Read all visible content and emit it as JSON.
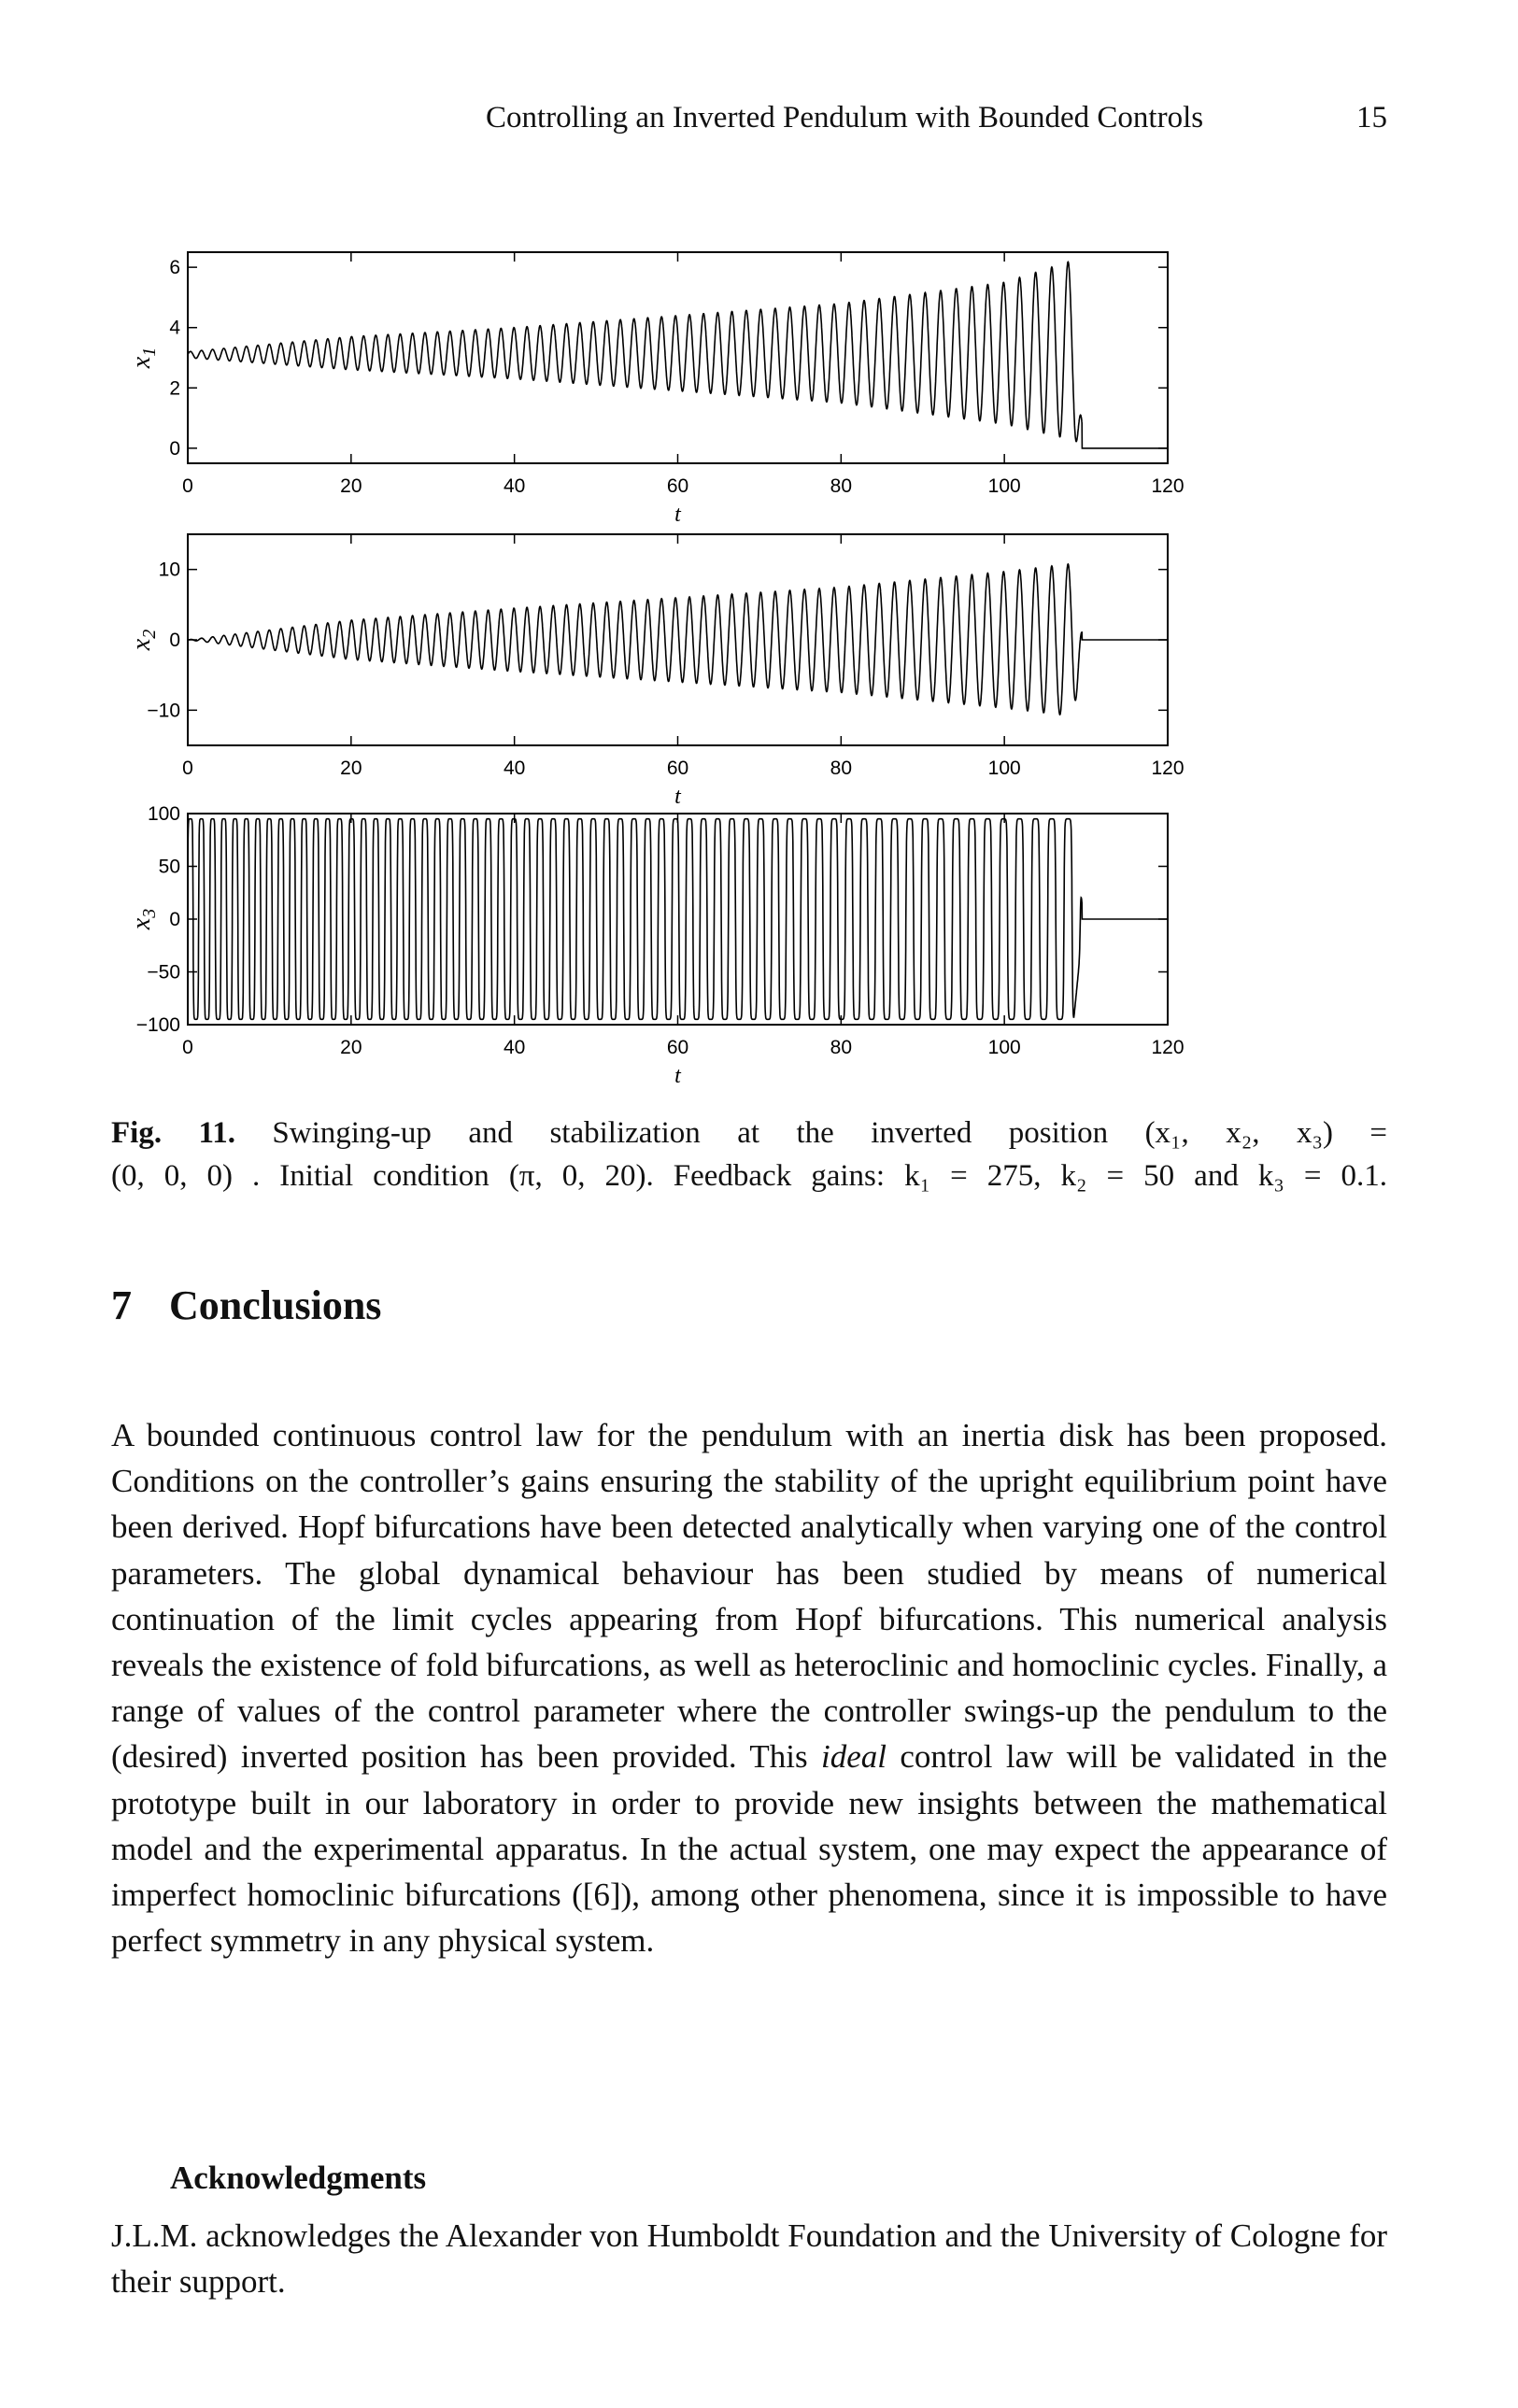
{
  "header": {
    "running_title": "Controlling an Inverted Pendulum with Bounded Controls",
    "page_number": "15"
  },
  "chart_data": [
    {
      "type": "line",
      "xlabel": "t",
      "ylabel": "x1",
      "xlim": [
        0,
        120
      ],
      "ylim": [
        -0.5,
        6.5
      ],
      "xticks": [
        "0",
        "20",
        "40",
        "60",
        "80",
        "100",
        "120"
      ],
      "yticks": [
        "0",
        "2",
        "4",
        "6"
      ],
      "ytick_values": [
        0,
        2,
        4,
        6
      ],
      "center": 3.14,
      "final_value": 0,
      "settle_time": 111,
      "envelope": {
        "t": [
          0,
          20,
          40,
          60,
          80,
          100,
          108
        ],
        "upper": [
          3.2,
          3.7,
          4.0,
          4.4,
          4.8,
          5.5,
          6.2
        ],
        "lower": [
          3.0,
          2.6,
          2.3,
          1.9,
          1.5,
          0.8,
          0.3
        ]
      }
    },
    {
      "type": "line",
      "xlabel": "t",
      "ylabel": "x2",
      "xlim": [
        0,
        120
      ],
      "ylim": [
        -15,
        15
      ],
      "xticks": [
        "0",
        "20",
        "40",
        "60",
        "80",
        "100",
        "120"
      ],
      "yticks": [
        "−10",
        "0",
        "10"
      ],
      "ytick_values": [
        -10,
        0,
        10
      ],
      "center": 0,
      "final_value": 0,
      "settle_time": 111,
      "envelope": {
        "t": [
          0,
          20,
          40,
          60,
          80,
          100,
          108
        ],
        "upper": [
          0,
          2.8,
          4.5,
          6.0,
          7.5,
          9.7,
          10.8
        ],
        "lower": [
          0,
          -2.8,
          -4.5,
          -6.0,
          -7.5,
          -9.7,
          -10.8
        ]
      }
    },
    {
      "type": "line",
      "xlabel": "t",
      "ylabel": "x3",
      "xlim": [
        0,
        120
      ],
      "ylim": [
        -100,
        100
      ],
      "xticks": [
        "0",
        "20",
        "40",
        "60",
        "80",
        "100",
        "120"
      ],
      "yticks": [
        "−100",
        "−50",
        "0",
        "50",
        "100"
      ],
      "ytick_values": [
        -100,
        -50,
        0,
        50,
        100
      ],
      "center": 0,
      "final_value": 0,
      "settle_time": 111,
      "envelope": {
        "t": [
          0,
          108
        ],
        "upper": [
          95,
          95
        ],
        "lower": [
          -95,
          -95
        ]
      }
    }
  ],
  "caption": {
    "label": "Fig. 11.",
    "line1": "Swinging-up and stabilization at the inverted position (x₁, x₂, x₃) =",
    "line2": "(0, 0, 0) . Initial condition (π, 0, 20). Feedback gains: k₁ = 275, k₂ = 50 and k₃ = 0.1."
  },
  "section": {
    "number": "7",
    "title": "Conclusions"
  },
  "body": {
    "p1_before": "A bounded continuous control law for the pendulum with an inertia disk has been proposed. Conditions on the controller’s gains ensuring the stability of the upright equilibrium point have been derived. Hopf bifurcations have been detected analytically when varying one of the control parameters. The global dynamical behaviour has been studied by means of numerical continuation of the limit cycles appearing from Hopf bifurcations. This numerical analysis reveals the existence of fold bifurcations, as well as heteroclinic and homoclinic cycles. Finally, a range of values of the control parameter where the controller swings-up the pendulum to the (desired) inverted position has been provided. This ",
    "p1_emph": "ideal",
    "p1_after": " control law will be validated in the prototype built in our laboratory in order to provide new insights between the mathematical model and the experimental apparatus. In the actual system, one may expect the appearance of imperfect homoclinic bifurcations ([6]), among other phenomena, since it is impossible to have perfect symmetry in any physical system."
  },
  "acknowledgments": {
    "heading": "Acknowledgments",
    "text": "J.L.M. acknowledges the Alexander von Humboldt Foundation and the University of Cologne for their support."
  }
}
